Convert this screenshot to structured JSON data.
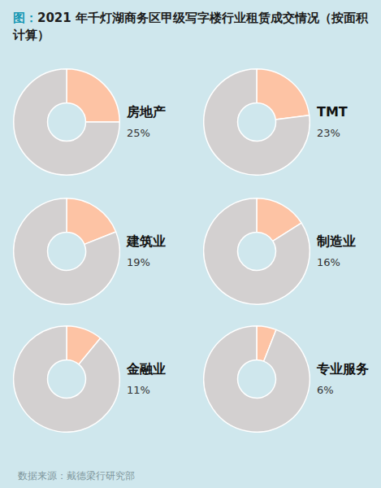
{
  "label": "图：",
  "title": "2021 年千灯湖商务区甲级写字楼行业租赁成交情况（按面积计算）",
  "source": "数据来源：戴德梁行研究部",
  "chart_data": [
    {
      "type": "doughnut",
      "title": "房地产",
      "values": [
        25,
        75
      ],
      "value_labels": [
        "25%",
        null
      ],
      "colors": [
        "#fdc3a4",
        "#d3d0d0"
      ]
    },
    {
      "type": "doughnut",
      "title": "TMT",
      "values": [
        23,
        77
      ],
      "value_labels": [
        "23%",
        null
      ],
      "colors": [
        "#fdc3a4",
        "#d3d0d0"
      ]
    },
    {
      "type": "doughnut",
      "title": "建筑业",
      "values": [
        19,
        81
      ],
      "value_labels": [
        "19%",
        null
      ],
      "colors": [
        "#fdc3a4",
        "#d3d0d0"
      ]
    },
    {
      "type": "doughnut",
      "title": "制造业",
      "values": [
        16,
        84
      ],
      "value_labels": [
        "16%",
        null
      ],
      "colors": [
        "#fdc3a4",
        "#d3d0d0"
      ]
    },
    {
      "type": "doughnut",
      "title": "金融业",
      "values": [
        11,
        89
      ],
      "value_labels": [
        "11%",
        null
      ],
      "colors": [
        "#fdc3a4",
        "#d3d0d0"
      ]
    },
    {
      "type": "doughnut",
      "title": "专业服务",
      "values": [
        6,
        94
      ],
      "value_labels": [
        "6%",
        null
      ],
      "colors": [
        "#fdc3a4",
        "#d3d0d0"
      ]
    }
  ]
}
